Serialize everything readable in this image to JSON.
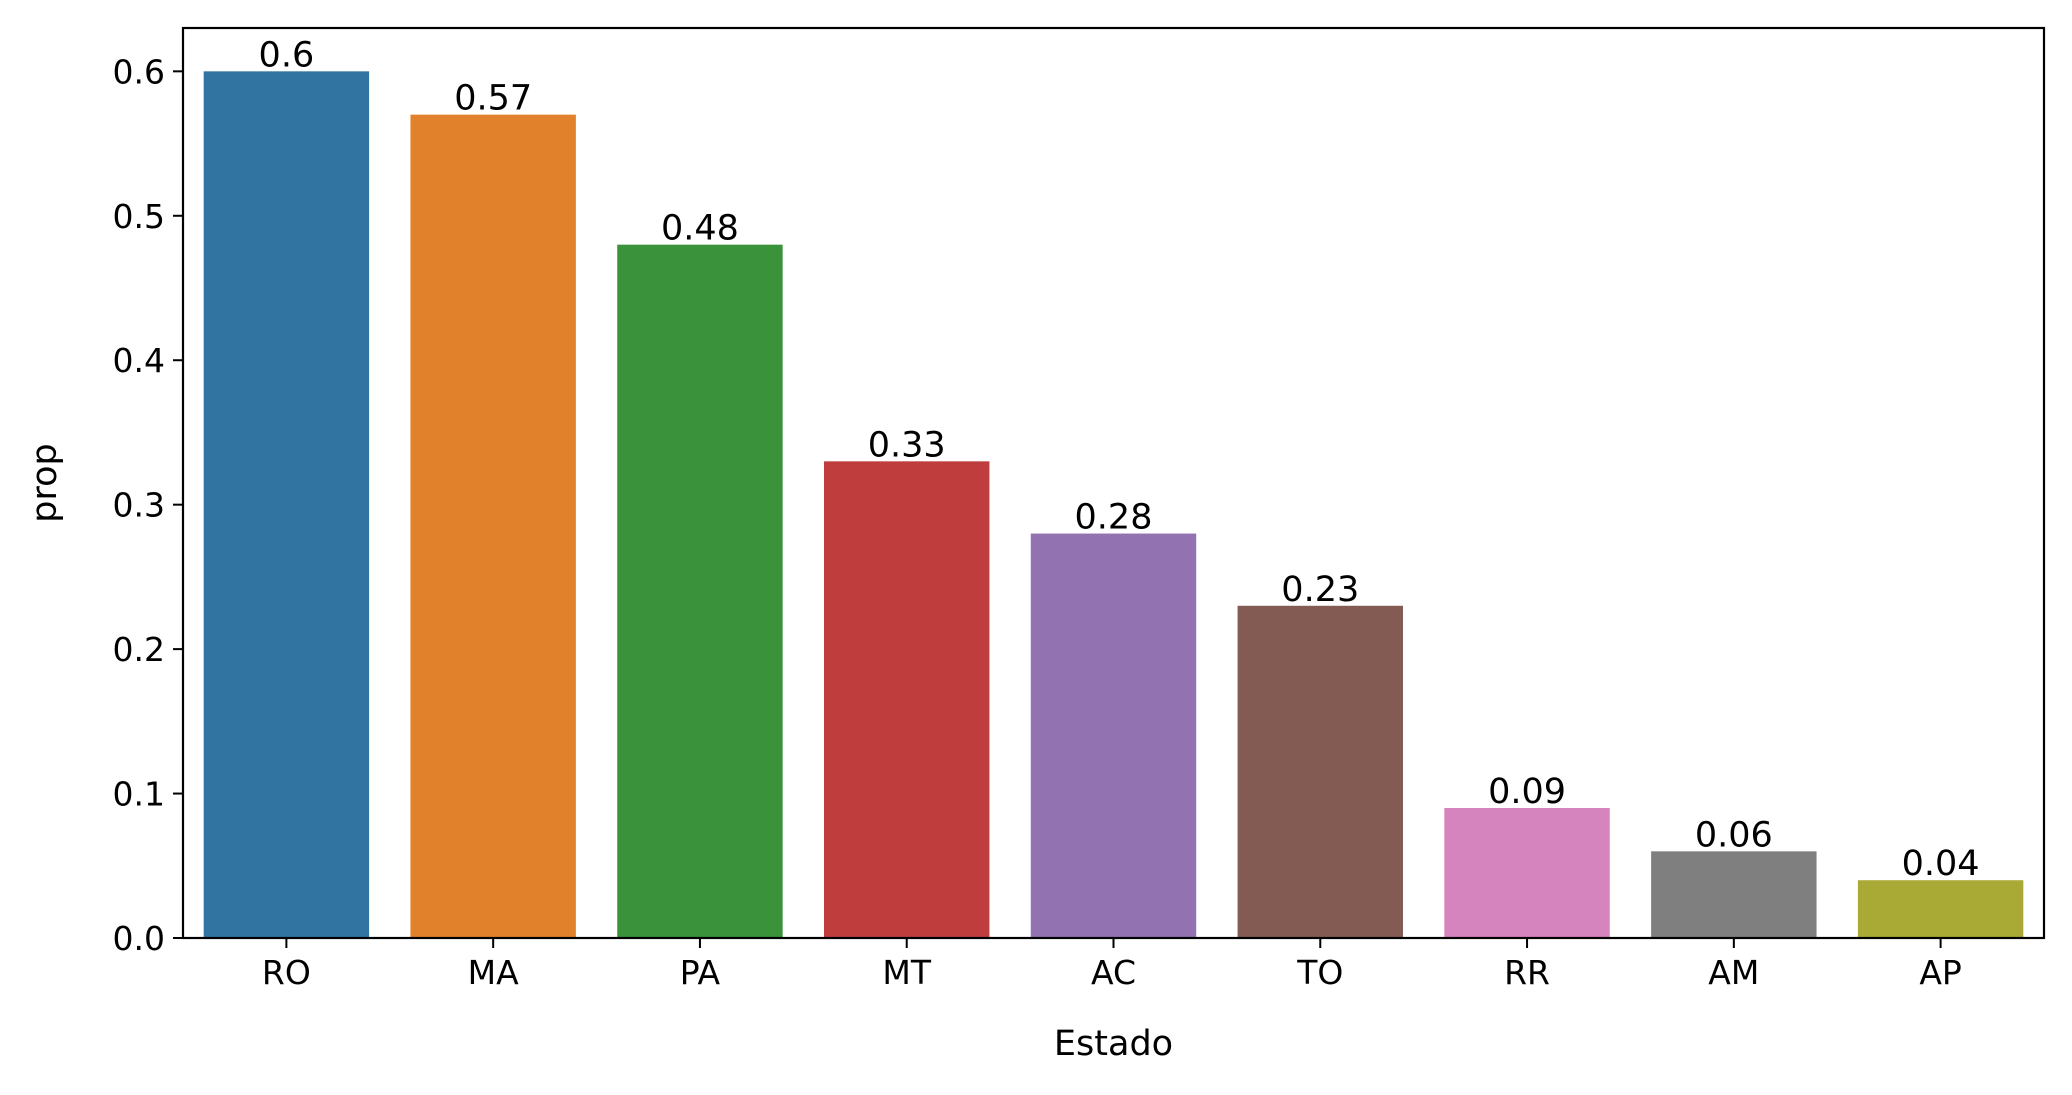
{
  "chart_data": {
    "type": "bar",
    "title": "",
    "xlabel": "Estado",
    "ylabel": "prop",
    "categories": [
      "RO",
      "MA",
      "PA",
      "MT",
      "AC",
      "TO",
      "RR",
      "AM",
      "AP"
    ],
    "values": [
      0.6,
      0.57,
      0.48,
      0.33,
      0.28,
      0.23,
      0.09,
      0.06,
      0.04
    ],
    "value_labels": [
      "0.6",
      "0.57",
      "0.48",
      "0.33",
      "0.28",
      "0.23",
      "0.09",
      "0.06",
      "0.04"
    ],
    "colors": [
      "#3274a1",
      "#e1812c",
      "#3a923a",
      "#c03d3e",
      "#9372b2",
      "#845b53",
      "#d684bd",
      "#7f7f7f",
      "#a9aa35"
    ],
    "ylim": [
      0,
      0.63
    ],
    "yticks": [
      0.0,
      0.1,
      0.2,
      0.3,
      0.4,
      0.5,
      0.6
    ],
    "ytick_labels": [
      "0.0",
      "0.1",
      "0.2",
      "0.3",
      "0.4",
      "0.5",
      "0.6"
    ],
    "grid": false,
    "legend": "none"
  }
}
